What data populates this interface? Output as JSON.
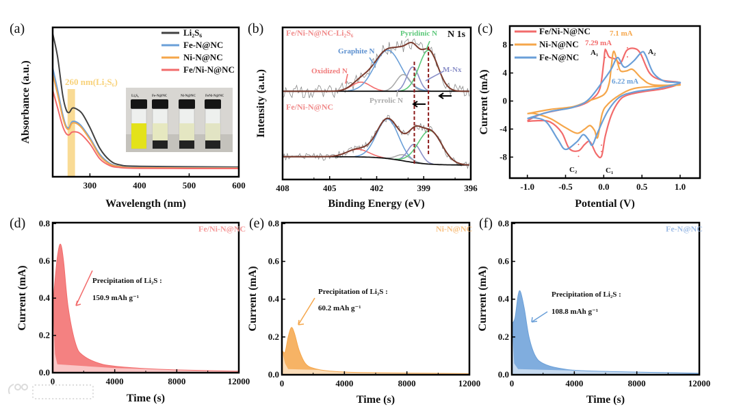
{
  "panel_labels": [
    "(a)",
    "(b)",
    "(c)",
    "(d)",
    "(e)",
    "(f)"
  ],
  "watermark": "大数跨境",
  "colors": {
    "black": "#404040",
    "blue": "#6a9fd8",
    "orange": "#f5a64a",
    "red": "#f26b6b",
    "green": "#5cc87a",
    "gray": "#aaaaaa",
    "purple": "#8a8fc8",
    "dark_red": "#8b1a1a",
    "highlight": "#f8d27a"
  },
  "chart_data": [
    {
      "id": "a",
      "type": "line",
      "xlabel": "Wavelength (nm)",
      "ylabel": "Absorbance (a.u.)",
      "xlim": [
        225,
        600
      ],
      "ylim": [
        0,
        1
      ],
      "xticks": [
        300,
        400,
        500,
        600
      ],
      "legend_placement": "top-right",
      "highlight": {
        "label": "260 nm(Li₂S₆)",
        "range": [
          255,
          270
        ]
      },
      "inset": {
        "labels": [
          "Li₂S₆",
          "Fe-N@NC",
          "Ni-N@NC",
          "FeNi-N@NC"
        ]
      },
      "series": [
        {
          "name": "Li₂S₆",
          "color": "#404040",
          "points": [
            [
              225,
              0.96
            ],
            [
              235,
              0.8
            ],
            [
              245,
              0.55
            ],
            [
              252,
              0.45
            ],
            [
              258,
              0.43
            ],
            [
              265,
              0.46
            ],
            [
              275,
              0.45
            ],
            [
              285,
              0.42
            ],
            [
              300,
              0.33
            ],
            [
              320,
              0.19
            ],
            [
              340,
              0.11
            ],
            [
              360,
              0.08
            ],
            [
              400,
              0.07
            ],
            [
              600,
              0.065
            ]
          ]
        },
        {
          "name": "Fe-N@NC",
          "color": "#6a9fd8",
          "points": [
            [
              225,
              0.73
            ],
            [
              235,
              0.58
            ],
            [
              245,
              0.42
            ],
            [
              252,
              0.34
            ],
            [
              258,
              0.33
            ],
            [
              265,
              0.37
            ],
            [
              280,
              0.35
            ],
            [
              300,
              0.26
            ],
            [
              320,
              0.15
            ],
            [
              340,
              0.09
            ],
            [
              360,
              0.07
            ],
            [
              400,
              0.062
            ],
            [
              600,
              0.06
            ]
          ]
        },
        {
          "name": "Ni-N@NC",
          "color": "#f5a64a",
          "points": [
            [
              225,
              0.69
            ],
            [
              235,
              0.55
            ],
            [
              245,
              0.4
            ],
            [
              252,
              0.33
            ],
            [
              258,
              0.32
            ],
            [
              265,
              0.36
            ],
            [
              280,
              0.34
            ],
            [
              300,
              0.25
            ],
            [
              320,
              0.14
            ],
            [
              340,
              0.085
            ],
            [
              360,
              0.068
            ],
            [
              400,
              0.06
            ],
            [
              600,
              0.058
            ]
          ]
        },
        {
          "name": "Fe/Ni-N@NC",
          "color": "#f26b6b",
          "points": [
            [
              225,
              0.58
            ],
            [
              235,
              0.46
            ],
            [
              245,
              0.34
            ],
            [
              252,
              0.29
            ],
            [
              258,
              0.28
            ],
            [
              265,
              0.3
            ],
            [
              280,
              0.29
            ],
            [
              300,
              0.22
            ],
            [
              320,
              0.12
            ],
            [
              340,
              0.075
            ],
            [
              360,
              0.062
            ],
            [
              400,
              0.056
            ],
            [
              600,
              0.055
            ]
          ]
        }
      ]
    },
    {
      "id": "b",
      "type": "line",
      "xlabel": "Binding Energy (eV)",
      "ylabel": "Intensity (a.u.)",
      "title": "N 1s",
      "xlim": [
        408,
        396
      ],
      "ylim": [
        0,
        100
      ],
      "xticks": [
        408,
        405,
        402,
        399,
        396
      ],
      "dashed_lines_eV": [
        399.6,
        398.7
      ],
      "spectra": [
        {
          "name": "Fe/Ni-N@NC-Li₂S₆",
          "baseline": [
            58,
            58
          ],
          "components": [
            {
              "name": "Oxidized N",
              "color": "#f26b6b",
              "center": 403.0,
              "height": 6,
              "sigma": 0.6
            },
            {
              "name": "Graphite N",
              "color": "#6a9fd8",
              "center": 401.3,
              "height": 27,
              "sigma": 0.85
            },
            {
              "name": "Pyrrolic N",
              "color": "#aaaaaa",
              "center": 400.3,
              "height": 11,
              "sigma": 0.45
            },
            {
              "name": "M-Nx",
              "color": "#8a8fc8",
              "center": 399.7,
              "height": 16,
              "sigma": 0.38
            },
            {
              "name": "Pyridinic N",
              "color": "#5cc87a",
              "center": 398.7,
              "height": 27,
              "sigma": 0.6
            }
          ]
        },
        {
          "name": "Fe/Ni-N@NC",
          "baseline": [
            15,
            9.5
          ],
          "components": [
            {
              "name": "Oxidized N",
              "color": "#f26b6b",
              "center": 403.2,
              "height": 5,
              "sigma": 0.7
            },
            {
              "name": "Graphite N",
              "color": "#6a9fd8",
              "center": 401.3,
              "height": 26,
              "sigma": 0.7
            },
            {
              "name": "Pyrrolic N",
              "color": "#aaaaaa",
              "center": 400.3,
              "height": 4,
              "sigma": 0.45
            },
            {
              "name": "M-Nx",
              "color": "#8a8fc8",
              "center": 399.6,
              "height": 12,
              "sigma": 0.42
            },
            {
              "name": "Pyridinic N",
              "color": "#5cc87a",
              "center": 398.6,
              "height": 22,
              "sigma": 0.75
            }
          ]
        }
      ]
    },
    {
      "id": "c",
      "type": "line",
      "xlabel": "Potential (V)",
      "ylabel": "Current (mA)",
      "xlim": [
        -1.23,
        1.26
      ],
      "ylim": [
        -11,
        10.7
      ],
      "xticks": [
        -1.0,
        -0.5,
        0.0,
        0.5,
        1.0
      ],
      "yticks": [
        -8,
        -4,
        0,
        4,
        8
      ],
      "legend_placement": "top-left",
      "series": [
        {
          "name": "Fe/Ni-N@NC",
          "color": "#f26b6b",
          "points": [
            [
              -1,
              -2.8
            ],
            [
              -0.8,
              -1.8
            ],
            [
              -0.5,
              -1.1
            ],
            [
              -0.3,
              -0.6
            ],
            [
              -0.15,
              0.3
            ],
            [
              -0.05,
              1.8
            ],
            [
              0,
              5.5
            ],
            [
              0.02,
              7.3
            ],
            [
              0.07,
              6.3
            ],
            [
              0.15,
              6.0
            ],
            [
              0.22,
              5.4
            ],
            [
              0.3,
              7.2
            ],
            [
              0.4,
              7.5
            ],
            [
              0.48,
              6.8
            ],
            [
              0.6,
              4.0
            ],
            [
              0.75,
              3.0
            ],
            [
              1,
              2.6
            ],
            [
              0.8,
              1.8
            ],
            [
              0.5,
              1.3
            ],
            [
              0.3,
              0.8
            ],
            [
              0.2,
              0
            ],
            [
              0.1,
              -2
            ],
            [
              0.02,
              -5
            ],
            [
              -0.03,
              -7.9
            ],
            [
              -0.1,
              -7.5
            ],
            [
              -0.18,
              -5.8
            ],
            [
              -0.25,
              -6.2
            ],
            [
              -0.33,
              -7.1
            ],
            [
              -0.45,
              -6.8
            ],
            [
              -0.55,
              -4.5
            ],
            [
              -0.7,
              -3.0
            ],
            [
              -0.85,
              -2.8
            ],
            [
              -1,
              -2.9
            ]
          ]
        },
        {
          "name": "Ni-N@NC",
          "color": "#f5a64a",
          "points": [
            [
              -1,
              -1.8
            ],
            [
              -0.7,
              -1.2
            ],
            [
              -0.4,
              -0.8
            ],
            [
              -0.2,
              0
            ],
            [
              0,
              0.9
            ],
            [
              0.07,
              2.5
            ],
            [
              0.1,
              5
            ],
            [
              0.13,
              7.1
            ],
            [
              0.18,
              5.5
            ],
            [
              0.22,
              4.3
            ],
            [
              0.3,
              4.3
            ],
            [
              0.38,
              4.5
            ],
            [
              0.5,
              3.2
            ],
            [
              0.65,
              2.3
            ],
            [
              1,
              2.3
            ],
            [
              0.7,
              2.1
            ],
            [
              0.4,
              1.8
            ],
            [
              0.2,
              0.8
            ],
            [
              0.05,
              -0.5
            ],
            [
              -0.02,
              -1.8
            ],
            [
              -0.08,
              -5.2
            ],
            [
              -0.12,
              -4.2
            ],
            [
              -0.18,
              -3.5
            ],
            [
              -0.25,
              -4.0
            ],
            [
              -0.35,
              -4.6
            ],
            [
              -0.5,
              -3.8
            ],
            [
              -0.7,
              -2.5
            ],
            [
              -0.9,
              -1.8
            ],
            [
              -1,
              -1.8
            ]
          ]
        },
        {
          "name": "Fe-N@NC",
          "color": "#6a9fd8",
          "points": [
            [
              -1,
              -2.5
            ],
            [
              -0.7,
              -1.5
            ],
            [
              -0.4,
              -0.9
            ],
            [
              -0.2,
              0.2
            ],
            [
              0,
              3
            ],
            [
              0.1,
              4.6
            ],
            [
              0.18,
              6.2
            ],
            [
              0.25,
              5.0
            ],
            [
              0.3,
              4.9
            ],
            [
              0.4,
              5.8
            ],
            [
              0.5,
              7.0
            ],
            [
              0.55,
              6.5
            ],
            [
              0.65,
              4.0
            ],
            [
              0.8,
              2.8
            ],
            [
              1,
              2.6
            ],
            [
              0.7,
              1.8
            ],
            [
              0.4,
              1.3
            ],
            [
              0.2,
              0.5
            ],
            [
              0.05,
              -1.5
            ],
            [
              -0.08,
              -4.5
            ],
            [
              -0.15,
              -6.3
            ],
            [
              -0.2,
              -5.5
            ],
            [
              -0.27,
              -4.8
            ],
            [
              -0.35,
              -5.8
            ],
            [
              -0.5,
              -6.9
            ],
            [
              -0.6,
              -5.5
            ],
            [
              -0.75,
              -3
            ],
            [
              -0.9,
              -2.4
            ],
            [
              -1,
              -2.5
            ]
          ]
        }
      ],
      "annotations": {
        "ni_peak": "7.1 mA",
        "feni_peak": "7.29 mA",
        "fe_peak": "6.22 mA",
        "A1": "A₁",
        "A2": "A₂",
        "C1": "C₁",
        "C2": "C₂"
      }
    },
    {
      "id": "d",
      "type": "area",
      "sample": "Fe/Ni-N@NC",
      "color": "#f26b6b",
      "xlabel": "Time (s)",
      "ylabel": "Current (mA)",
      "xlim": [
        0,
        12000
      ],
      "ylim": [
        0,
        0.805
      ],
      "xticks": [
        0,
        4000,
        8000,
        12000
      ],
      "yticks": [
        0,
        0.2,
        0.4,
        0.6,
        0.8
      ],
      "annotation": "Precipitation of Li₂S :",
      "capacity": "150.9 mAh g⁻¹",
      "curve": [
        [
          0,
          0.35
        ],
        [
          100,
          0.45
        ],
        [
          300,
          0.62
        ],
        [
          500,
          0.69
        ],
        [
          700,
          0.6
        ],
        [
          1000,
          0.35
        ],
        [
          1500,
          0.15
        ],
        [
          2000,
          0.09
        ],
        [
          3000,
          0.05
        ],
        [
          4000,
          0.035
        ],
        [
          6000,
          0.022
        ],
        [
          8000,
          0.015
        ],
        [
          12000,
          0.008
        ]
      ],
      "baseline": [
        [
          0,
          0.35
        ],
        [
          150,
          0.1
        ],
        [
          300,
          0.045
        ],
        [
          4000,
          0.025
        ],
        [
          12000,
          0.006
        ]
      ]
    },
    {
      "id": "e",
      "type": "area",
      "sample": "Ni-N@NC",
      "color": "#f5a64a",
      "xlabel": "Time (s)",
      "ylabel": "Current (mA)",
      "xlim": [
        0,
        12000
      ],
      "ylim": [
        0,
        0.805
      ],
      "xticks": [
        0,
        4000,
        8000,
        12000
      ],
      "yticks": [
        0,
        0.2,
        0.4,
        0.6,
        0.8
      ],
      "annotation": "Precipitation of Li₂S :",
      "capacity": "60.2 mAh g⁻¹",
      "curve": [
        [
          0,
          0.13
        ],
        [
          200,
          0.12
        ],
        [
          400,
          0.2
        ],
        [
          600,
          0.25
        ],
        [
          800,
          0.22
        ],
        [
          1100,
          0.13
        ],
        [
          1500,
          0.06
        ],
        [
          2000,
          0.035
        ],
        [
          3000,
          0.02
        ],
        [
          5000,
          0.012
        ],
        [
          12000,
          0.006
        ]
      ],
      "baseline": [
        [
          0,
          0.13
        ],
        [
          200,
          0.06
        ],
        [
          400,
          0.03
        ],
        [
          12000,
          0.004
        ]
      ]
    },
    {
      "id": "f",
      "type": "area",
      "sample": "Fe-N@NC",
      "color": "#6a9fd8",
      "xlabel": "Time (s)",
      "ylabel": "Current (mA)",
      "xlim": [
        0,
        12000
      ],
      "ylim": [
        0,
        0.805
      ],
      "xticks": [
        0,
        4000,
        8000,
        12000
      ],
      "yticks": [
        0,
        0.2,
        0.4,
        0.6,
        0.8
      ],
      "annotation": "Precipitation of Li₂S :",
      "capacity": "108.8 mAh g⁻¹",
      "curve": [
        [
          0,
          0.27
        ],
        [
          200,
          0.3
        ],
        [
          400,
          0.42
        ],
        [
          550,
          0.44
        ],
        [
          800,
          0.35
        ],
        [
          1100,
          0.2
        ],
        [
          1500,
          0.1
        ],
        [
          2000,
          0.06
        ],
        [
          3000,
          0.035
        ],
        [
          5000,
          0.02
        ],
        [
          12000,
          0.008
        ]
      ],
      "baseline": [
        [
          0,
          0.27
        ],
        [
          150,
          0.06
        ],
        [
          400,
          0.03
        ],
        [
          12000,
          0.004
        ]
      ]
    }
  ]
}
